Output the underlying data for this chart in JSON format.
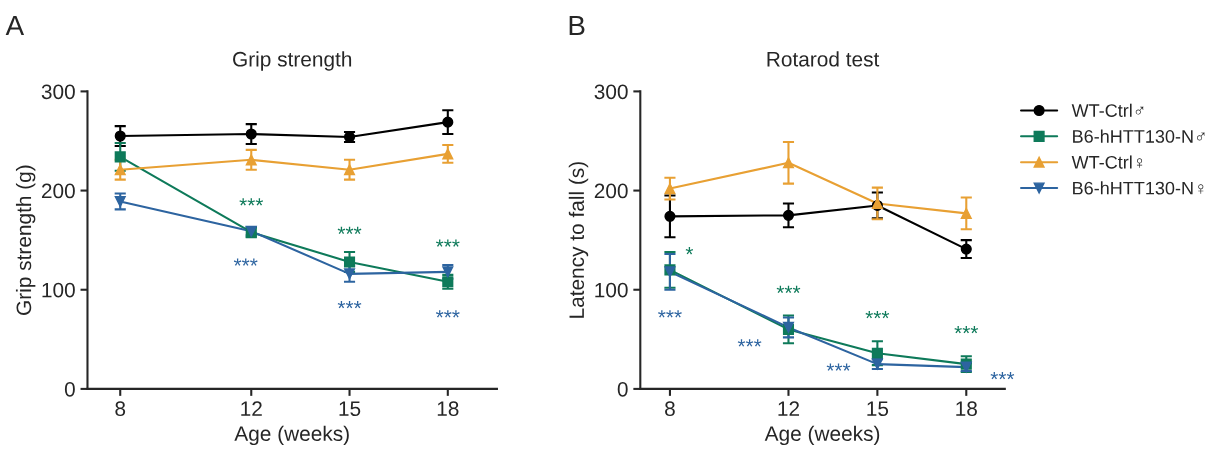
{
  "chart_data": [
    {
      "type": "line",
      "title": "Grip strength",
      "xlabel": "Age (weeks)",
      "ylabel": "Grip strength (g)",
      "x": [
        8,
        12,
        15,
        18
      ],
      "xlim": [
        7,
        19.5
      ],
      "xticks": [
        8,
        12,
        15,
        18
      ],
      "ylim": [
        0,
        300
      ],
      "yticks": [
        0,
        100,
        200,
        300
      ],
      "grid": false,
      "legend": false,
      "series": [
        {
          "color": "#000000",
          "marker": "circle",
          "values": [
            255,
            257,
            254,
            269
          ],
          "errors": [
            10,
            10,
            5,
            12
          ]
        },
        {
          "color": "#0e7a5a",
          "marker": "square",
          "values": [
            234,
            158,
            128,
            108
          ],
          "errors": [
            14,
            5,
            10,
            7
          ]
        },
        {
          "color": "#e8a033",
          "marker": "triangle",
          "values": [
            221,
            231,
            221,
            237
          ],
          "errors": [
            10,
            10,
            10,
            9
          ]
        },
        {
          "color": "#2d64a0",
          "marker": "triangle-down",
          "values": [
            189,
            159,
            116,
            118
          ],
          "errors": [
            8,
            4,
            8,
            7
          ]
        }
      ],
      "annotations": [
        "A",
        "***",
        "***",
        "***",
        "***",
        "***",
        "***"
      ]
    },
    {
      "type": "line",
      "title": "Rotarod test",
      "xlabel": "Age (weeks)",
      "ylabel": "Latency to fall (s)",
      "x": [
        8,
        12,
        15,
        18
      ],
      "xlim": [
        7,
        19.3
      ],
      "xticks": [
        8,
        12,
        15,
        18
      ],
      "ylim": [
        0,
        300
      ],
      "yticks": [
        0,
        100,
        200,
        300
      ],
      "grid": false,
      "legend": "right",
      "series": [
        {
          "name": "WT-Ctrl♂",
          "color": "#000000",
          "marker": "circle",
          "values": [
            174,
            175,
            185,
            141
          ],
          "errors": [
            21,
            12,
            13,
            9
          ]
        },
        {
          "name": "B6-hHTT130-N♂",
          "color": "#0e7a5a",
          "marker": "square",
          "values": [
            120,
            60,
            36,
            25
          ],
          "errors": [
            18,
            14,
            12,
            8
          ]
        },
        {
          "name": "WT-Ctrl♀",
          "color": "#e8a033",
          "marker": "triangle",
          "values": [
            202,
            228,
            187,
            177
          ],
          "errors": [
            11,
            21,
            16,
            16
          ]
        },
        {
          "name": "B6-hHTT130-N♀",
          "color": "#2d64a0",
          "marker": "triangle-down",
          "values": [
            118,
            62,
            25,
            22
          ],
          "errors": [
            18,
            10,
            5,
            4
          ]
        }
      ],
      "annotations": [
        "B",
        "*",
        "***",
        "***",
        "***",
        "***",
        "***",
        "***",
        "***"
      ]
    }
  ]
}
